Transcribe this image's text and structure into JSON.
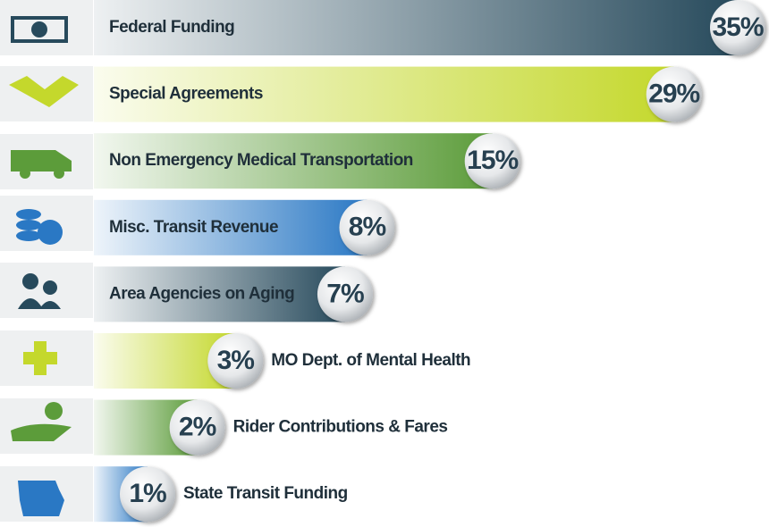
{
  "chart_data": {
    "type": "bar",
    "categories": [
      "Federal Funding",
      "Special Agreements",
      "Non Emergency Medical Transportation",
      "Misc. Transit Revenue",
      "Area Agencies on Aging",
      "MO Dept. of Mental Health",
      "Rider Contributions & Fares",
      "State Transit Funding"
    ],
    "values": [
      35,
      29,
      15,
      8,
      7,
      3,
      2,
      1
    ],
    "value_labels": [
      "35%",
      "29%",
      "15%",
      "8%",
      "7%",
      "3%",
      "2%",
      "1%"
    ],
    "colors": [
      "#274a5c",
      "#c4d82c",
      "#5c9c3a",
      "#2a78c4",
      "#274a5c",
      "#c4d82c",
      "#5c9c3a",
      "#2a78c4"
    ]
  }
}
